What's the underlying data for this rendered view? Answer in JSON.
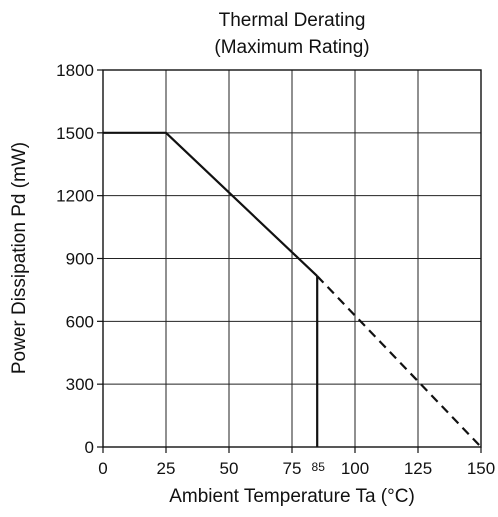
{
  "chart_data": {
    "type": "line",
    "title": "Thermal Derating",
    "subtitle": "(Maximum Rating)",
    "xlabel": "Ambient Temperature   Ta (°C)",
    "ylabel": "Power Dissipation   Pd (mW)",
    "xlim": [
      0,
      150
    ],
    "ylim": [
      0,
      1800
    ],
    "grid": true,
    "xticks": [
      0,
      25,
      50,
      75,
      100,
      125,
      150
    ],
    "xtick_labels": [
      "0",
      "25",
      "50",
      "75",
      "100",
      "125",
      "150"
    ],
    "extra_x_label": {
      "value": 85,
      "text": "85"
    },
    "yticks": [
      0,
      300,
      600,
      900,
      1200,
      1500,
      1800
    ],
    "ytick_labels": [
      "0",
      "300",
      "600",
      "900",
      "1200",
      "1500",
      "1800"
    ],
    "series": [
      {
        "style": "solid",
        "x": [
          0,
          25,
          85
        ],
        "y": [
          1500,
          1500,
          816
        ]
      },
      {
        "style": "dashed",
        "x": [
          85,
          150
        ],
        "y": [
          816,
          0
        ]
      },
      {
        "style": "solid",
        "x": [
          85,
          85
        ],
        "y": [
          816,
          0
        ]
      }
    ],
    "colors": {
      "axis": "#111111",
      "grid": "#222222",
      "line": "#111111",
      "background": "#ffffff"
    }
  }
}
